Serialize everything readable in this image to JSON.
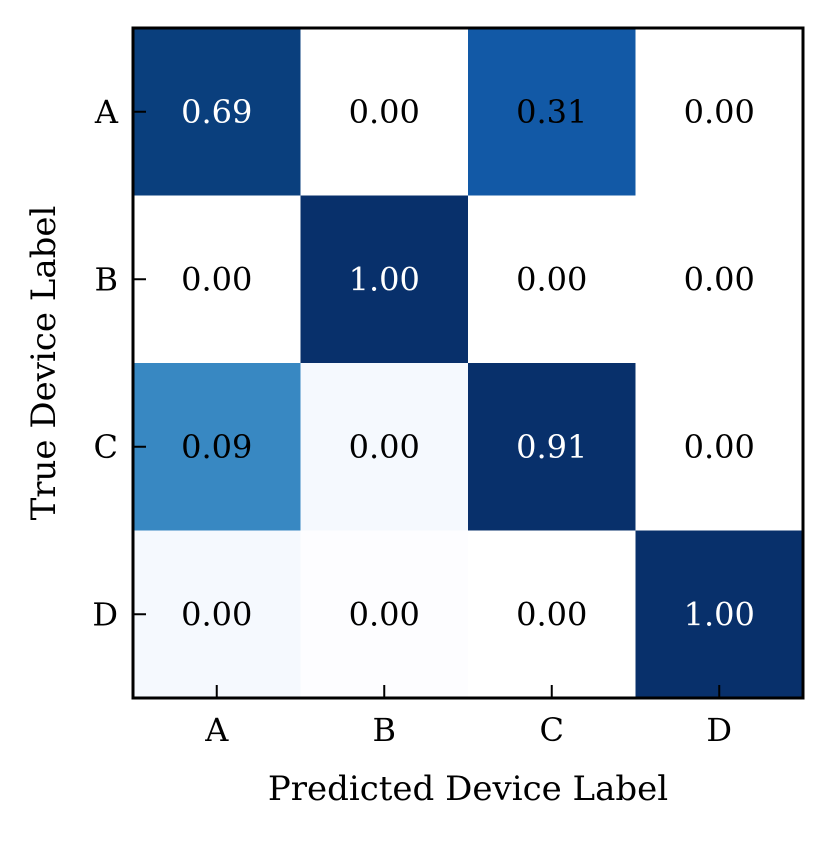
{
  "chart_data": {
    "type": "heatmap",
    "title": "",
    "xlabel": "Predicted Device Label",
    "ylabel": "True Device Label",
    "x_categories": [
      "A",
      "B",
      "C",
      "D"
    ],
    "y_categories": [
      "A",
      "B",
      "C",
      "D"
    ],
    "values": [
      [
        0.69,
        0.0,
        0.31,
        0.0
      ],
      [
        0.0,
        1.0,
        0.0,
        0.0
      ],
      [
        0.09,
        0.0,
        0.91,
        0.0
      ],
      [
        0.0,
        0.0,
        0.0,
        1.0
      ]
    ],
    "cell_labels": [
      [
        "0.69",
        "0.00",
        "0.31",
        "0.00"
      ],
      [
        "0.00",
        "1.00",
        "0.00",
        "0.00"
      ],
      [
        "0.09",
        "0.00",
        "0.91",
        "0.00"
      ],
      [
        "0.00",
        "0.00",
        "0.00",
        "1.00"
      ]
    ],
    "cell_colors": [
      [
        "#0a3f7d",
        "#ffffff",
        "#1259a6",
        "#ffffff"
      ],
      [
        "#ffffff",
        "#08306b",
        "#ffffff",
        "#ffffff"
      ],
      [
        "#3888c2",
        "#f5f9fe",
        "#08306b",
        "#ffffff"
      ],
      [
        "#f5f9fe",
        "#fdfdff",
        "#ffffff",
        "#08306b"
      ]
    ],
    "colormap": "Blues",
    "text_color_dark": "#000000",
    "text_color_light": "#ffffff",
    "grid": false
  }
}
